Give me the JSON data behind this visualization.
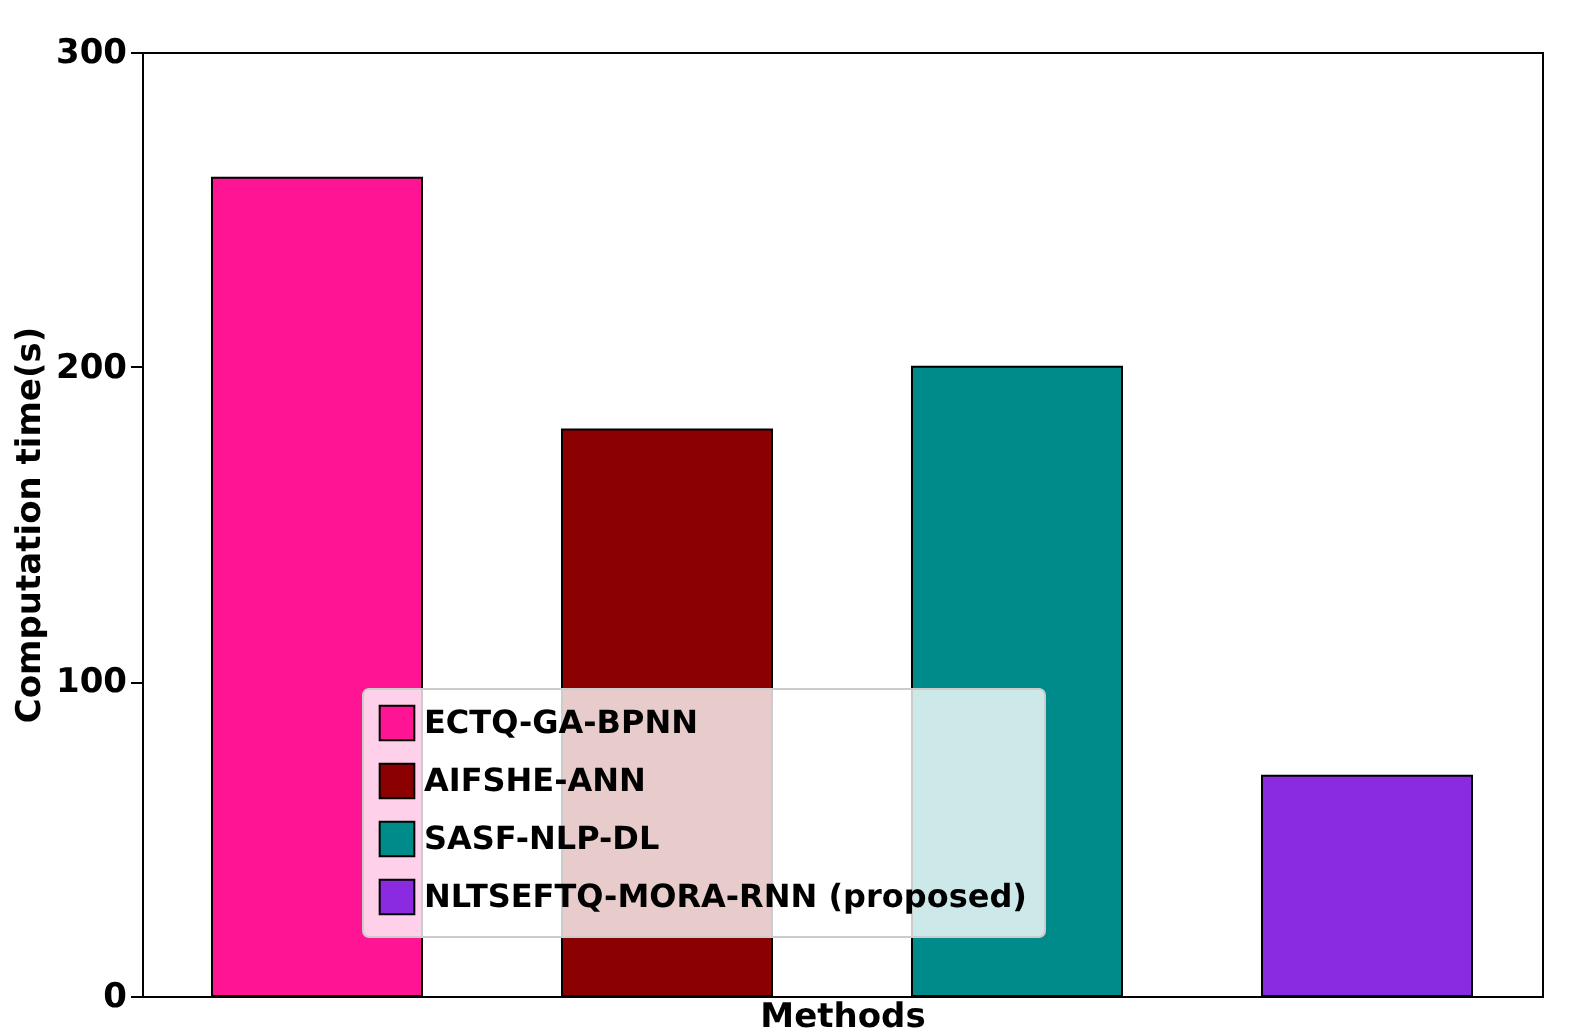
{
  "chart_data": {
    "type": "bar",
    "xlabel": "Methods",
    "ylabel": "Computation time(s)",
    "categories": [
      null,
      null,
      null,
      null
    ],
    "stacked": true,
    "series": [
      {
        "name": "ECTQ-GA-BPNN",
        "color": "#ff1493",
        "values": [
          260,
          null,
          null,
          null
        ]
      },
      {
        "name": "AIFSHE-ANN",
        "color": "#8b0000",
        "values": [
          null,
          180,
          null,
          null
        ]
      },
      {
        "name": "SASF-NLP-DL",
        "color": "#008b8b",
        "values": [
          null,
          null,
          200,
          null
        ]
      },
      {
        "name": "NLTSEFTQ-MORA-RNN (proposed)",
        "color": "#8a2be2",
        "values": [
          null,
          null,
          null,
          70
        ]
      }
    ],
    "ylim": [
      0,
      300
    ],
    "yticks": [
      0,
      100,
      200,
      300
    ],
    "grid": false,
    "legend": "bottom",
    "tick_labels": "y"
  }
}
